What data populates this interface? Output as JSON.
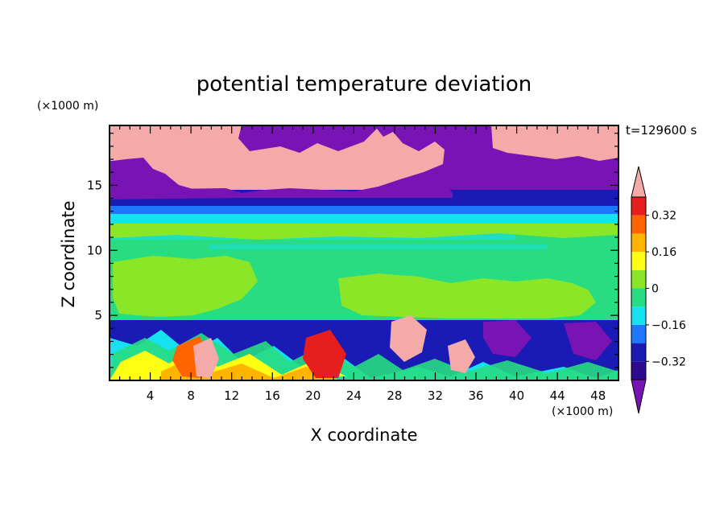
{
  "chart_data": {
    "type": "heatmap",
    "title": "potential temperature deviation",
    "time_label": "t=129600 s",
    "xlabel": "X coordinate",
    "ylabel": "Z coordinate",
    "x_unit": "(×1000 m)",
    "y_unit": "(×1000 m)",
    "xlim": [
      0,
      50
    ],
    "ylim": [
      0,
      19.6
    ],
    "x_ticks": [
      "4",
      "8",
      "12",
      "16",
      "20",
      "24",
      "28",
      "32",
      "36",
      "40",
      "44",
      "48"
    ],
    "y_ticks": [
      "5",
      "10",
      "15"
    ],
    "colorbar": {
      "levels": [
        -0.4,
        -0.32,
        -0.24,
        -0.16,
        -0.08,
        0,
        0.08,
        0.16,
        0.24,
        0.32,
        0.4
      ],
      "tick_labels": [
        "0.32",
        "0.16",
        "0",
        "−0.16",
        "−0.32"
      ],
      "tick_values": [
        0.32,
        0.16,
        0,
        -0.16,
        -0.32
      ],
      "colors_low_to_high": [
        "#2e0a8c",
        "#1a1ab4",
        "#1e78ff",
        "#16e1f0",
        "#28dc82",
        "#8ce628",
        "#ffff14",
        "#ffb400",
        "#ff6400",
        "#e61e1e"
      ],
      "under_color": "#7814b4",
      "over_color": "#f5aaaa",
      "extend": "both"
    }
  }
}
